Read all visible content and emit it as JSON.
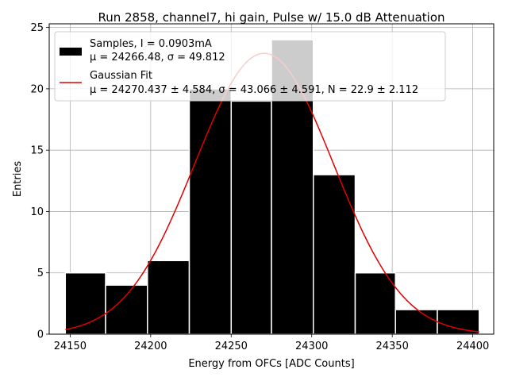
{
  "chart_data": {
    "type": "bar",
    "title": "Run 2858, channel7, hi gain, Pulse w/ 15.0 dB Attenuation",
    "xlabel": "Energy from OFCs [ADC Counts]",
    "ylabel": "Entries",
    "xlim": [
      24137,
      24413
    ],
    "ylim": [
      0,
      25.3
    ],
    "xticks": [
      "24150",
      "24200",
      "24250",
      "24300",
      "24350",
      "24400"
    ],
    "yticks": [
      "0",
      "5",
      "10",
      "15",
      "20",
      "25"
    ],
    "grid": true,
    "legend_position": "top-left",
    "bins": [
      {
        "x0": 24147,
        "x1": 24172,
        "value": 5
      },
      {
        "x0": 24172,
        "x1": 24198,
        "value": 4
      },
      {
        "x0": 24198,
        "x1": 24224,
        "value": 6
      },
      {
        "x0": 24224,
        "x1": 24250,
        "value": 20
      },
      {
        "x0": 24250,
        "x1": 24275,
        "value": 19
      },
      {
        "x0": 24275,
        "x1": 24301,
        "value": 24
      },
      {
        "x0": 24301,
        "x1": 24327,
        "value": 13
      },
      {
        "x0": 24327,
        "x1": 24352,
        "value": 5
      },
      {
        "x0": 24352,
        "x1": 24378,
        "value": 2
      },
      {
        "x0": 24378,
        "x1": 24404,
        "value": 2
      }
    ],
    "fit": {
      "mu": 24270.437,
      "sigma": 43.066,
      "N": 22.9,
      "x_range": [
        24147,
        24404
      ]
    },
    "colors": {
      "bars": "#000000",
      "bar_edge": "#ffffff",
      "fit_line": "#e00000",
      "grid": "#b0b0b0"
    },
    "legend": [
      {
        "line1": "Samples, I = 0.0903mA",
        "line2": "μ = 24266.48, σ = 49.812"
      },
      {
        "line1": "Gaussian Fit",
        "line2": "μ = 24270.437 ± 4.584, σ = 43.066 ± 4.591, N = 22.9 ± 2.112"
      }
    ]
  }
}
